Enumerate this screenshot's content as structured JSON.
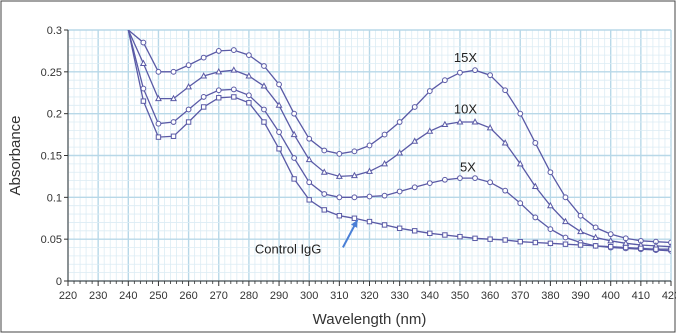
{
  "chart_data": {
    "type": "line",
    "xlabel": "Wavelength (nm)",
    "ylabel": "Absorbance",
    "xlim": [
      220,
      420
    ],
    "ylim": [
      0,
      0.3
    ],
    "x_ticks": [
      "220",
      "230",
      "240",
      "250",
      "260",
      "270",
      "280",
      "290",
      "300",
      "310",
      "320",
      "330",
      "340",
      "350",
      "360",
      "370",
      "380",
      "390",
      "400",
      "410",
      "420"
    ],
    "y_ticks": [
      "0",
      "0.05",
      "0.1",
      "0.15",
      "0.2",
      "0.25",
      "0.3"
    ],
    "grid": true,
    "colors": {
      "line": "#5a5aa6",
      "marker": "#5a5aa6",
      "grid_major": "#b8d8e8",
      "grid_minor": "#dcecf4",
      "frame": "#333333",
      "arrow": "#4a7fd6"
    },
    "series": [
      {
        "name": "15X",
        "x": [
          240,
          245,
          250,
          255,
          260,
          265,
          270,
          275,
          280,
          285,
          290,
          295,
          300,
          305,
          310,
          315,
          320,
          325,
          330,
          335,
          340,
          345,
          350,
          355,
          360,
          365,
          370,
          375,
          380,
          385,
          390,
          395,
          400,
          405,
          410,
          415,
          420
        ],
        "y": [
          0.3,
          0.285,
          0.25,
          0.25,
          0.258,
          0.267,
          0.275,
          0.276,
          0.27,
          0.257,
          0.235,
          0.2,
          0.17,
          0.156,
          0.152,
          0.155,
          0.162,
          0.175,
          0.19,
          0.208,
          0.227,
          0.24,
          0.249,
          0.252,
          0.246,
          0.228,
          0.2,
          0.165,
          0.13,
          0.1,
          0.078,
          0.064,
          0.056,
          0.051,
          0.048,
          0.047,
          0.046
        ]
      },
      {
        "name": "10X",
        "x": [
          240,
          245,
          250,
          255,
          260,
          265,
          270,
          275,
          280,
          285,
          290,
          295,
          300,
          305,
          310,
          315,
          320,
          325,
          330,
          335,
          340,
          345,
          350,
          355,
          360,
          365,
          370,
          375,
          380,
          385,
          390,
          395,
          400,
          405,
          410,
          415,
          420
        ],
        "y": [
          0.3,
          0.26,
          0.218,
          0.218,
          0.232,
          0.245,
          0.25,
          0.252,
          0.245,
          0.233,
          0.21,
          0.175,
          0.145,
          0.13,
          0.125,
          0.126,
          0.131,
          0.14,
          0.153,
          0.167,
          0.179,
          0.187,
          0.19,
          0.19,
          0.183,
          0.165,
          0.14,
          0.113,
          0.09,
          0.071,
          0.059,
          0.052,
          0.048,
          0.045,
          0.043,
          0.042,
          0.041
        ]
      },
      {
        "name": "5X",
        "x": [
          240,
          245,
          250,
          255,
          260,
          265,
          270,
          275,
          280,
          285,
          290,
          295,
          300,
          305,
          310,
          315,
          320,
          325,
          330,
          335,
          340,
          345,
          350,
          355,
          360,
          365,
          370,
          375,
          380,
          385,
          390,
          395,
          400,
          405,
          410,
          415,
          420
        ],
        "y": [
          0.3,
          0.23,
          0.188,
          0.19,
          0.205,
          0.22,
          0.228,
          0.229,
          0.222,
          0.205,
          0.178,
          0.147,
          0.118,
          0.104,
          0.1,
          0.1,
          0.101,
          0.102,
          0.107,
          0.112,
          0.117,
          0.121,
          0.123,
          0.123,
          0.118,
          0.108,
          0.093,
          0.076,
          0.062,
          0.052,
          0.046,
          0.042,
          0.04,
          0.039,
          0.038,
          0.037,
          0.036
        ]
      },
      {
        "name": "Control IgG",
        "x": [
          240,
          245,
          250,
          255,
          260,
          265,
          270,
          275,
          280,
          285,
          290,
          295,
          300,
          305,
          310,
          315,
          320,
          325,
          330,
          335,
          340,
          345,
          350,
          355,
          360,
          365,
          370,
          375,
          380,
          385,
          390,
          395,
          400,
          405,
          410,
          415,
          420
        ],
        "y": [
          0.3,
          0.215,
          0.172,
          0.173,
          0.19,
          0.208,
          0.219,
          0.22,
          0.213,
          0.19,
          0.158,
          0.122,
          0.097,
          0.085,
          0.078,
          0.075,
          0.071,
          0.067,
          0.063,
          0.06,
          0.057,
          0.055,
          0.053,
          0.051,
          0.05,
          0.049,
          0.047,
          0.046,
          0.045,
          0.044,
          0.043,
          0.042,
          0.041,
          0.04,
          0.039,
          0.038,
          0.038
        ]
      }
    ],
    "annotations": [
      {
        "text": "15X",
        "x": 348,
        "y": 0.262
      },
      {
        "text": "10X",
        "x": 348,
        "y": 0.2
      },
      {
        "text": "5X",
        "x": 350,
        "y": 0.131
      },
      {
        "text": "Control IgG",
        "x": 282,
        "y": 0.033,
        "arrow_to": [
          316,
          0.073
        ]
      }
    ]
  }
}
